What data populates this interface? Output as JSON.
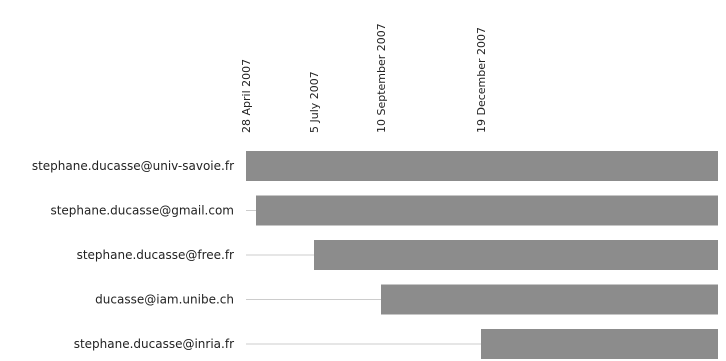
{
  "chart_data": {
    "type": "bar",
    "orientation": "horizontal",
    "title": "",
    "xlabel": "",
    "ylabel": "",
    "x_axis": "date",
    "x_range": [
      "2007-03-01",
      "2008-12-31"
    ],
    "ticks": [
      {
        "date": "2007-04-28",
        "label": "28 April 2007"
      },
      {
        "date": "2007-07-05",
        "label": "5 July 2007"
      },
      {
        "date": "2007-09-10",
        "label": "10 September 2007"
      },
      {
        "date": "2007-12-19",
        "label": "19 December 2007"
      }
    ],
    "categories": [
      "stephane.ducasse@univ-savoie.fr",
      "stephane.ducasse@gmail.com",
      "stephane.ducasse@free.fr",
      "ducasse@iam.unibe.ch",
      "stephane.ducasse@inria.fr"
    ],
    "starts": [
      "2007-04-28",
      "2007-05-08",
      "2007-07-05",
      "2007-09-10",
      "2007-12-19"
    ],
    "bar_color": "#8c8c8c",
    "line_color": "#cccccc",
    "grid": false,
    "legend": false
  }
}
